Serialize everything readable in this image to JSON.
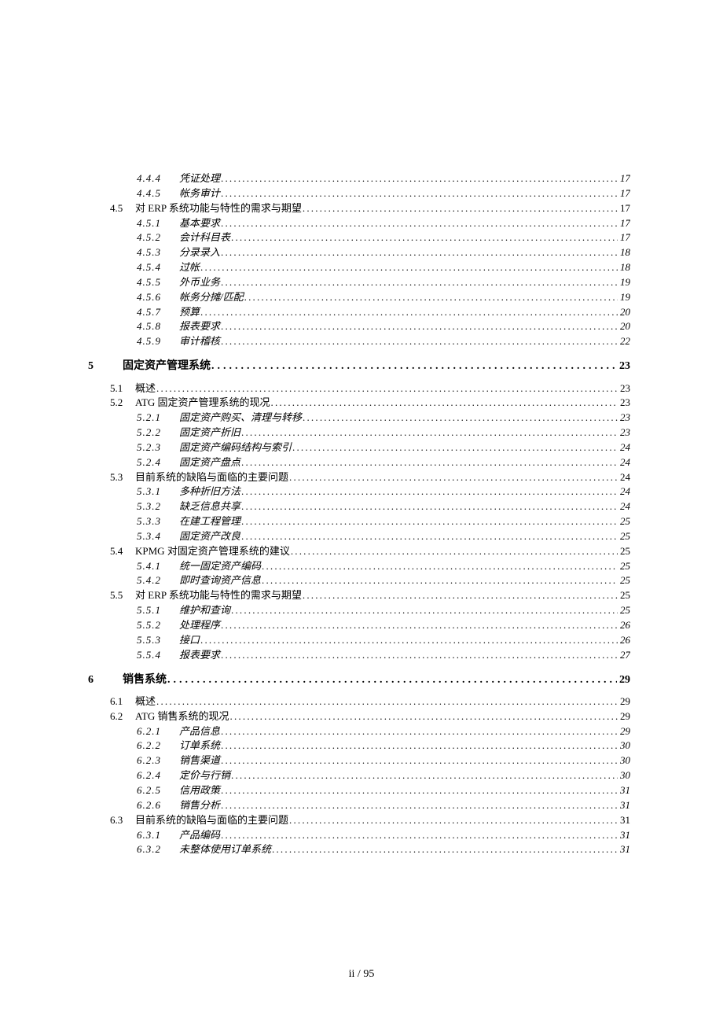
{
  "footer": "ii / 95",
  "toc": [
    {
      "level": 3,
      "num": "4.4.4",
      "title": "凭证处理",
      "page": "17"
    },
    {
      "level": 3,
      "num": "4.4.5",
      "title": "帐务审计",
      "page": "17"
    },
    {
      "level": 2,
      "num": "4.5",
      "title": "对 ERP 系统功能与特性的需求与期望",
      "page": "17"
    },
    {
      "level": 3,
      "num": "4.5.1",
      "title": "基本要求",
      "page": "17"
    },
    {
      "level": 3,
      "num": "4.5.2",
      "title": "会计科目表",
      "page": "17"
    },
    {
      "level": 3,
      "num": "4.5.3",
      "title": "分录录入",
      "page": "18"
    },
    {
      "level": 3,
      "num": "4.5.4",
      "title": "过帐",
      "page": "18"
    },
    {
      "level": 3,
      "num": "4.5.5",
      "title": "外币业务",
      "page": "19"
    },
    {
      "level": 3,
      "num": "4.5.6",
      "title": "帐务分摊/匹配",
      "page": "19"
    },
    {
      "level": 3,
      "num": "4.5.7",
      "title": "预算",
      "page": "20"
    },
    {
      "level": 3,
      "num": "4.5.8",
      "title": "报表要求",
      "page": "20"
    },
    {
      "level": 3,
      "num": "4.5.9",
      "title": "审计稽核",
      "page": "22"
    },
    {
      "level": 1,
      "num": "5",
      "title": "固定资产管理系统",
      "page": "23"
    },
    {
      "level": 2,
      "num": "5.1",
      "title": "概述",
      "page": "23"
    },
    {
      "level": 2,
      "num": "5.2",
      "title": "ATG 固定资产管理系统的现况",
      "page": "23"
    },
    {
      "level": 3,
      "num": "5.2.1",
      "title": "固定资产购买、清理与转移",
      "page": "23"
    },
    {
      "level": 3,
      "num": "5.2.2",
      "title": "固定资产折旧",
      "page": "23"
    },
    {
      "level": 3,
      "num": "5.2.3",
      "title": "固定资产编码结构与索引",
      "page": "24"
    },
    {
      "level": 3,
      "num": "5.2.4",
      "title": "固定资产盘点",
      "page": "24"
    },
    {
      "level": 2,
      "num": "5.3",
      "title": "目前系统的缺陷与面临的主要问题",
      "page": "24"
    },
    {
      "level": 3,
      "num": "5.3.1",
      "title": "多种折旧方法",
      "page": "24"
    },
    {
      "level": 3,
      "num": "5.3.2",
      "title": "缺乏信息共享",
      "page": "24"
    },
    {
      "level": 3,
      "num": "5.3.3",
      "title": "在建工程管理",
      "page": "25"
    },
    {
      "level": 3,
      "num": "5.3.4",
      "title": "固定资产改良",
      "page": "25"
    },
    {
      "level": 2,
      "num": "5.4",
      "title": "KPMG 对固定资产管理系统的建议",
      "page": "25"
    },
    {
      "level": 3,
      "num": "5.4.1",
      "title": "统一固定资产编码",
      "page": "25"
    },
    {
      "level": 3,
      "num": "5.4.2",
      "title": "即时查询资产信息",
      "page": "25"
    },
    {
      "level": 2,
      "num": "5.5",
      "title": "对 ERP 系统功能与特性的需求与期望",
      "page": "25"
    },
    {
      "level": 3,
      "num": "5.5.1",
      "title": "维护和查询",
      "page": "25"
    },
    {
      "level": 3,
      "num": "5.5.2",
      "title": "处理程序",
      "page": "26"
    },
    {
      "level": 3,
      "num": "5.5.3",
      "title": "接口",
      "page": "26"
    },
    {
      "level": 3,
      "num": "5.5.4",
      "title": "报表要求",
      "page": "27"
    },
    {
      "level": 1,
      "num": "6",
      "title": "销售系统",
      "page": "29"
    },
    {
      "level": 2,
      "num": "6.1",
      "title": "概述",
      "page": "29"
    },
    {
      "level": 2,
      "num": "6.2",
      "title": "ATG 销售系统的现况",
      "page": "29"
    },
    {
      "level": 3,
      "num": "6.2.1",
      "title": "产品信息",
      "page": "29"
    },
    {
      "level": 3,
      "num": "6.2.2",
      "title": "订单系统",
      "page": "30"
    },
    {
      "level": 3,
      "num": "6.2.3",
      "title": "销售渠道",
      "page": "30"
    },
    {
      "level": 3,
      "num": "6.2.4",
      "title": "定价与行销",
      "page": "30"
    },
    {
      "level": 3,
      "num": "6.2.5",
      "title": "信用政策",
      "page": "31"
    },
    {
      "level": 3,
      "num": "6.2.6",
      "title": "销售分析",
      "page": "31"
    },
    {
      "level": 2,
      "num": "6.3",
      "title": "目前系统的缺陷与面临的主要问题",
      "page": "31"
    },
    {
      "level": 3,
      "num": "6.3.1",
      "title": "产品编码",
      "page": "31"
    },
    {
      "level": 3,
      "num": "6.3.2",
      "title": "未整体使用订单系统",
      "page": "31"
    }
  ]
}
